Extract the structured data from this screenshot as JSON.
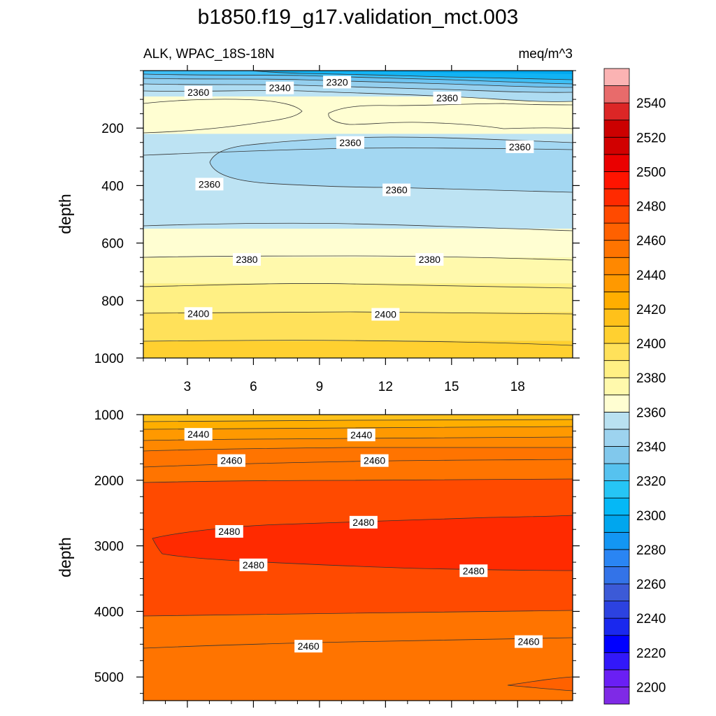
{
  "figure": {
    "title": "b1850.f19_g17.validation_mct.003",
    "left_label": "ALK, WPAC_18S-18N",
    "right_label": "meq/m^3"
  },
  "chart_data": [
    {
      "type": "contour",
      "name": "upper-depth-panel",
      "ylabel": "depth",
      "xlim": [
        1,
        20.5
      ],
      "ylim": [
        1000,
        0
      ],
      "x_ticks": [
        3,
        6,
        9,
        12,
        15,
        18
      ],
      "x_tick_labels": [
        "3",
        "6",
        "9",
        "12",
        "15",
        "18"
      ],
      "y_ticks": [
        200,
        400,
        600,
        800,
        1000
      ],
      "y_tick_labels": [
        "200",
        "400",
        "600",
        "800",
        "1000"
      ],
      "bands": [
        {
          "value": 2370,
          "color": "#fffed2",
          "from": 90,
          "to": 220
        },
        {
          "value": 2370,
          "color": "#fffed2",
          "from": 550,
          "to": 650
        },
        {
          "value": 2375,
          "color": "#fff9ac",
          "from": 650,
          "to": 740
        },
        {
          "value": 2385,
          "color": "#fff084",
          "from": 740,
          "to": 840
        },
        {
          "value": 2395,
          "color": "#ffe15a",
          "from": 840,
          "to": 940
        },
        {
          "value": 2405,
          "color": "#ffd030",
          "from": 940,
          "to": 1000
        }
      ],
      "contour_labels": [
        {
          "text": "2320",
          "x": 9.8,
          "y": 40
        },
        {
          "text": "2340",
          "x": 7.2,
          "y": 60
        },
        {
          "text": "2360",
          "x": 3.5,
          "y": 75
        },
        {
          "text": "2360",
          "x": 14.8,
          "y": 95
        },
        {
          "text": "2360",
          "x": 10.4,
          "y": 250
        },
        {
          "text": "2360",
          "x": 18.1,
          "y": 265
        },
        {
          "text": "2360",
          "x": 4.0,
          "y": 395
        },
        {
          "text": "2360",
          "x": 12.5,
          "y": 415
        },
        {
          "text": "2380",
          "x": 5.7,
          "y": 657
        },
        {
          "text": "2380",
          "x": 14.0,
          "y": 657
        },
        {
          "text": "2400",
          "x": 3.5,
          "y": 845
        },
        {
          "text": "2400",
          "x": 12.0,
          "y": 848
        }
      ]
    },
    {
      "type": "contour",
      "name": "lower-depth-panel",
      "ylabel": "depth",
      "xlim": [
        1,
        20.5
      ],
      "ylim": [
        5360,
        1000
      ],
      "x_ticks": [
        3,
        6,
        9,
        12,
        15,
        18
      ],
      "y_ticks": [
        1000,
        2000,
        3000,
        4000,
        5000
      ],
      "y_tick_labels": [
        "1000",
        "2000",
        "3000",
        "4000",
        "5000"
      ],
      "contour_labels": [
        {
          "text": "2440",
          "x": 3.5,
          "y": 1300
        },
        {
          "text": "2440",
          "x": 10.9,
          "y": 1310
        },
        {
          "text": "2460",
          "x": 5.0,
          "y": 1700
        },
        {
          "text": "2460",
          "x": 11.5,
          "y": 1700
        },
        {
          "text": "2480",
          "x": 4.9,
          "y": 2780
        },
        {
          "text": "2480",
          "x": 11.0,
          "y": 2640
        },
        {
          "text": "2480",
          "x": 6.0,
          "y": 3290
        },
        {
          "text": "2480",
          "x": 16.0,
          "y": 3380
        },
        {
          "text": "2460",
          "x": 8.5,
          "y": 4530
        },
        {
          "text": "2460",
          "x": 18.5,
          "y": 4460
        }
      ]
    }
  ],
  "colorbar": {
    "levels": [
      2200,
      2210,
      2220,
      2230,
      2240,
      2250,
      2260,
      2270,
      2280,
      2290,
      2300,
      2310,
      2320,
      2330,
      2340,
      2350,
      2360,
      2370,
      2380,
      2390,
      2400,
      2410,
      2420,
      2430,
      2440,
      2450,
      2460,
      2470,
      2480,
      2490,
      2500,
      2510,
      2520,
      2530,
      2540,
      2550
    ],
    "tick_labels": [
      "2200",
      "2220",
      "2240",
      "2260",
      "2280",
      "2300",
      "2320",
      "2340",
      "2360",
      "2380",
      "2400",
      "2420",
      "2440",
      "2460",
      "2480",
      "2500",
      "2520",
      "2540"
    ],
    "colors": [
      "#7f2ae6",
      "#6a1ff4",
      "#3218f9",
      "#0000ff",
      "#1a28ee",
      "#2c42e0",
      "#3c5ad7",
      "#3373e8",
      "#2a85f3",
      "#1396f3",
      "#00a6ee",
      "#05b8f6",
      "#26c5f5",
      "#56c2ef",
      "#81c8ec",
      "#9dd3ef",
      "#b9e1f1",
      "#fffed2",
      "#fff9ac",
      "#fff084",
      "#ffe15a",
      "#ffd030",
      "#ffc11a",
      "#ffae00",
      "#ff9900",
      "#ff8800",
      "#ff7400",
      "#ff6100",
      "#ff4a00",
      "#ff2a00",
      "#ff1400",
      "#ea0000",
      "#d10000",
      "#cc0000",
      "#dc2626",
      "#e86b6b",
      "#fbb3b3"
    ]
  }
}
